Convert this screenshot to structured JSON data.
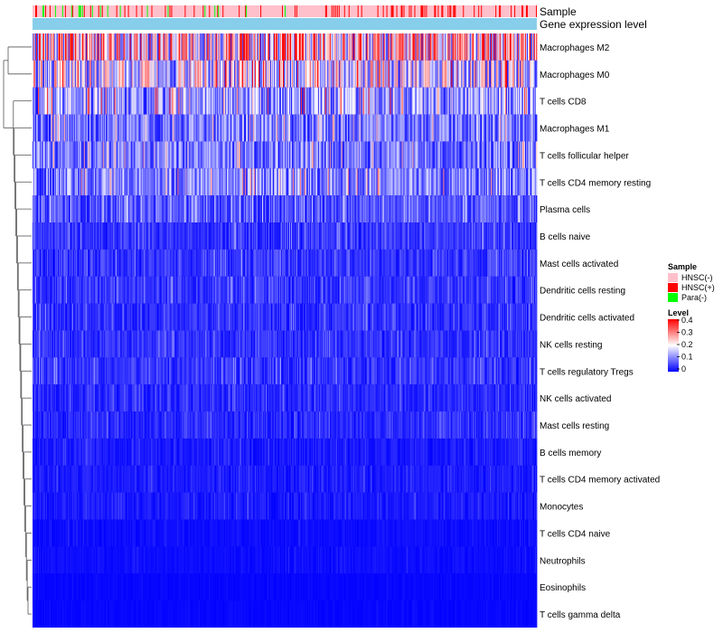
{
  "chart_data": {
    "type": "heatmap",
    "title": "",
    "n_samples": 560,
    "annotations": {
      "sample_label": "Sample",
      "expression_label": "Gene expression level"
    },
    "rows": [
      {
        "name": "Macrophages M2",
        "mean": 0.22
      },
      {
        "name": "Macrophages M0",
        "mean": 0.17
      },
      {
        "name": "T cells CD8",
        "mean": 0.12
      },
      {
        "name": "Macrophages M1",
        "mean": 0.09
      },
      {
        "name": "T cells follicular helper",
        "mean": 0.09
      },
      {
        "name": "T cells CD4 memory resting",
        "mean": 0.1
      },
      {
        "name": "Plasma cells",
        "mean": 0.06
      },
      {
        "name": "B cells naive",
        "mean": 0.04
      },
      {
        "name": "Mast cells activated",
        "mean": 0.04
      },
      {
        "name": "Dendritic cells resting",
        "mean": 0.04
      },
      {
        "name": "Dendritic cells activated",
        "mean": 0.035
      },
      {
        "name": "NK cells resting",
        "mean": 0.035
      },
      {
        "name": "T cells regulatory  Tregs",
        "mean": 0.04
      },
      {
        "name": "NK cells activated",
        "mean": 0.03
      },
      {
        "name": "Mast cells resting",
        "mean": 0.03
      },
      {
        "name": "B cells memory",
        "mean": 0.02
      },
      {
        "name": "T cells CD4 memory activated",
        "mean": 0.02
      },
      {
        "name": "Monocytes",
        "mean": 0.02
      },
      {
        "name": "T cells CD4 naive",
        "mean": 0.01
      },
      {
        "name": "Neutrophils",
        "mean": 0.01
      },
      {
        "name": "Eosinophils",
        "mean": 0.005
      },
      {
        "name": "T cells gamma delta",
        "mean": 0.005
      }
    ],
    "sample_groups": [
      {
        "name": "HNSC(-)",
        "color": "#ffc0cb"
      },
      {
        "name": "HNSC(+)",
        "color": "#ff0000"
      },
      {
        "name": "Para(-)",
        "color": "#00ff00"
      }
    ],
    "color_scale": {
      "title": "Level",
      "domain": [
        0,
        0.4
      ],
      "ticks": [
        "0.4",
        "0.3",
        "0.2",
        "0.1",
        "0"
      ],
      "low_color": "#0000ff",
      "mid_color": "#ffffff",
      "high_color": "#ff0000"
    },
    "legend": {
      "sample_title": "Sample",
      "level_title": "Level"
    },
    "expression_bar_color": "#87ceeb",
    "dendrogram": "left"
  }
}
